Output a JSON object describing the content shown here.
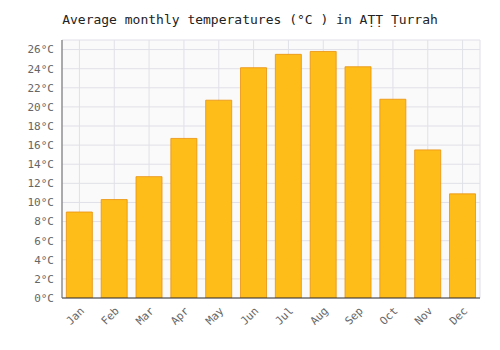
{
  "chart_data": {
    "type": "bar",
    "title": "Average monthly temperatures (°C ) in AṬṬ Ṭurrah",
    "categories": [
      "Jan",
      "Feb",
      "Mar",
      "Apr",
      "May",
      "Jun",
      "Jul",
      "Aug",
      "Sep",
      "Oct",
      "Nov",
      "Dec"
    ],
    "values": [
      9.0,
      10.3,
      12.7,
      16.7,
      20.7,
      24.1,
      25.5,
      25.8,
      24.2,
      20.8,
      15.5,
      10.9
    ],
    "color": "#FFBD1A",
    "ylim": [
      0,
      27
    ],
    "yticks": [
      {
        "value": 0,
        "label": "0°C"
      },
      {
        "value": 2,
        "label": "2°C"
      },
      {
        "value": 4,
        "label": "4°C"
      },
      {
        "value": 6,
        "label": "6°C"
      },
      {
        "value": 8,
        "label": "8°C"
      },
      {
        "value": 10,
        "label": "10°C"
      },
      {
        "value": 12,
        "label": "12°C"
      },
      {
        "value": 14,
        "label": "14°C"
      },
      {
        "value": 16,
        "label": "16°C"
      },
      {
        "value": 18,
        "label": "18°C"
      },
      {
        "value": 20,
        "label": "20°C"
      },
      {
        "value": 22,
        "label": "22°C"
      },
      {
        "value": 24,
        "label": "24°C"
      },
      {
        "value": 26,
        "label": "26°C"
      }
    ],
    "grid": true
  }
}
